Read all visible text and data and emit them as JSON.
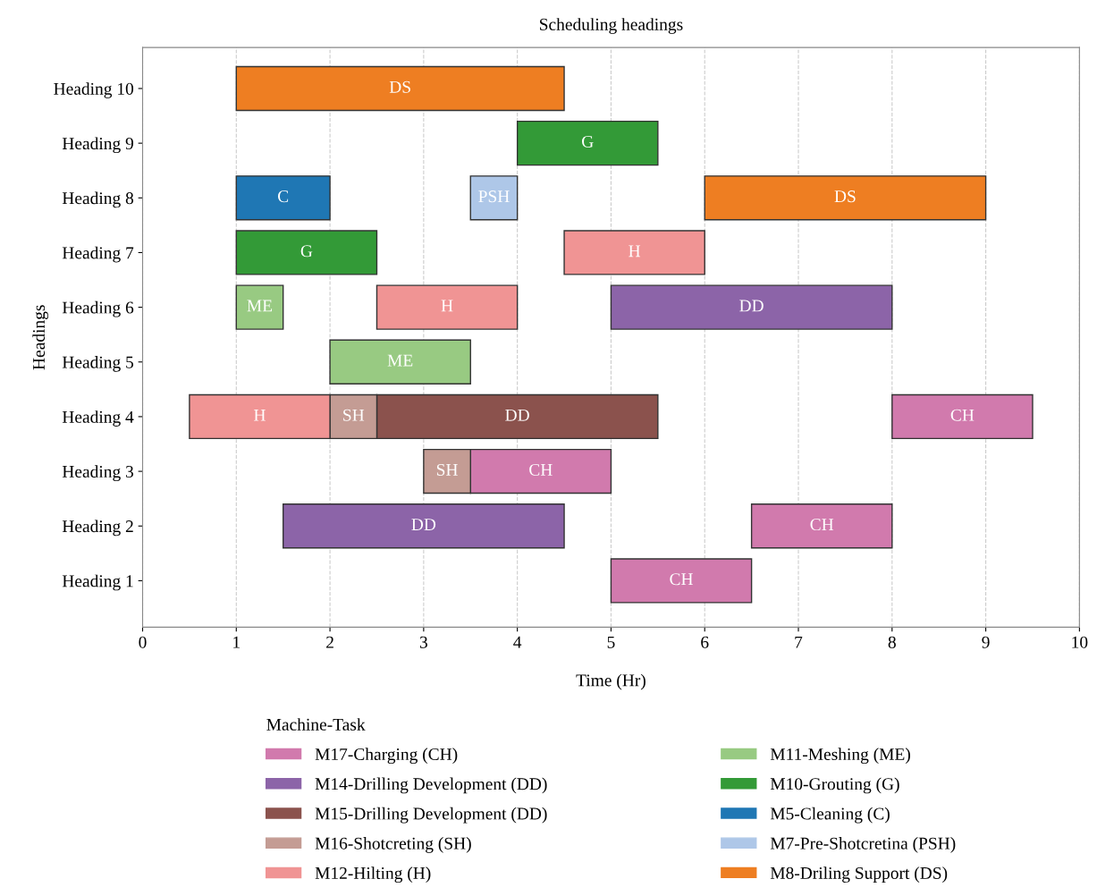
{
  "chart_data": {
    "type": "bar",
    "orientation": "horizontal",
    "title": "Scheduling headings",
    "xlabel": "Time (Hr)",
    "ylabel": "Headings",
    "legend_title": "Machine-Task",
    "categories": [
      "Heading 10",
      "Heading 9",
      "Heading 8",
      "Heading 7",
      "Heading 6",
      "Heading 5",
      "Heading 4",
      "Heading 3",
      "Heading 2",
      "Heading 1"
    ],
    "series": [
      {
        "name": "M17-Charging (CH)",
        "color": "#d17aad",
        "base": [
          null,
          null,
          null,
          null,
          null,
          null,
          8,
          3.5,
          6.5,
          5
        ],
        "values": [
          null,
          null,
          null,
          null,
          null,
          null,
          1.5,
          1.5,
          1.5,
          1.5
        ],
        "value_labels": [
          null,
          null,
          null,
          null,
          null,
          null,
          "CH",
          "CH",
          "CH",
          "CH"
        ]
      },
      {
        "name": "M14-Drilling Development (DD)",
        "color": "#8c64a8",
        "base": [
          null,
          null,
          null,
          null,
          5,
          null,
          null,
          null,
          1.5,
          null
        ],
        "values": [
          null,
          null,
          null,
          null,
          3,
          null,
          null,
          null,
          3,
          null
        ],
        "value_labels": [
          null,
          null,
          null,
          null,
          "DD",
          null,
          null,
          null,
          "DD",
          null
        ]
      },
      {
        "name": "M15-Drilling Development (DD)",
        "color": "#8b524d",
        "base": [
          null,
          null,
          null,
          null,
          null,
          null,
          2.5,
          null,
          null,
          null
        ],
        "values": [
          null,
          null,
          null,
          null,
          null,
          null,
          3,
          null,
          null,
          null
        ],
        "value_labels": [
          null,
          null,
          null,
          null,
          null,
          null,
          "DD",
          null,
          null,
          null
        ]
      },
      {
        "name": "M16-Shotcreting (SH)",
        "color": "#c49c94",
        "base": [
          null,
          null,
          null,
          null,
          null,
          null,
          2,
          3,
          null,
          null
        ],
        "values": [
          null,
          null,
          null,
          null,
          null,
          null,
          0.5,
          0.5,
          null,
          null
        ],
        "value_labels": [
          null,
          null,
          null,
          null,
          null,
          null,
          "SH",
          "SH",
          null,
          null
        ]
      },
      {
        "name": "M12-Hilting (H)",
        "color": "#f09494",
        "base": [
          null,
          null,
          null,
          4.5,
          2.5,
          null,
          0.5,
          null,
          null,
          null
        ],
        "values": [
          null,
          null,
          null,
          1.5,
          1.5,
          null,
          1.5,
          null,
          null,
          null
        ],
        "value_labels": [
          null,
          null,
          null,
          "H",
          "H",
          null,
          "H",
          null,
          null,
          null
        ]
      },
      {
        "name": "M11-Meshing (ME)",
        "color": "#98ca82",
        "base": [
          null,
          null,
          null,
          null,
          1,
          2,
          null,
          null,
          null,
          null
        ],
        "values": [
          null,
          null,
          null,
          null,
          0.5,
          1.5,
          null,
          null,
          null,
          null
        ],
        "value_labels": [
          null,
          null,
          null,
          null,
          "ME",
          "ME",
          null,
          null,
          null,
          null
        ]
      },
      {
        "name": "M10-Grouting (G)",
        "color": "#339a37",
        "base": [
          null,
          4,
          null,
          1,
          null,
          null,
          null,
          null,
          null,
          null
        ],
        "values": [
          null,
          1.5,
          null,
          1.5,
          null,
          null,
          null,
          null,
          null,
          null
        ],
        "value_labels": [
          null,
          "G",
          null,
          "G",
          null,
          null,
          null,
          null,
          null,
          null
        ]
      },
      {
        "name": "M5-Cleaning (C)",
        "color": "#1f77b4",
        "base": [
          null,
          null,
          1,
          null,
          null,
          null,
          null,
          null,
          null,
          null
        ],
        "values": [
          null,
          null,
          1,
          null,
          null,
          null,
          null,
          null,
          null,
          null
        ],
        "value_labels": [
          null,
          null,
          "C",
          null,
          null,
          null,
          null,
          null,
          null,
          null
        ]
      },
      {
        "name": "M7-Pre-Shotcretina (PSH)",
        "color": "#aec7e8",
        "base": [
          null,
          null,
          3.5,
          null,
          null,
          null,
          null,
          null,
          null,
          null
        ],
        "values": [
          null,
          null,
          0.5,
          null,
          null,
          null,
          null,
          null,
          null,
          null
        ],
        "value_labels": [
          null,
          null,
          "PSH",
          null,
          null,
          null,
          null,
          null,
          null,
          null
        ]
      },
      {
        "name": "M8-Driling Support (DS)",
        "color": "#ee7e22",
        "base": [
          1,
          null,
          6,
          null,
          null,
          null,
          null,
          null,
          null,
          null
        ],
        "values": [
          3.5,
          null,
          3,
          null,
          null,
          null,
          null,
          null,
          null,
          null
        ],
        "value_labels": [
          "DS",
          null,
          "DS",
          null,
          null,
          null,
          null,
          null,
          null,
          null
        ]
      }
    ],
    "xlim": [
      0,
      10
    ],
    "xticks": [
      0,
      1,
      2,
      3,
      4,
      5,
      6,
      7,
      8,
      9,
      10
    ],
    "grid": "x",
    "legend": "bottom"
  }
}
